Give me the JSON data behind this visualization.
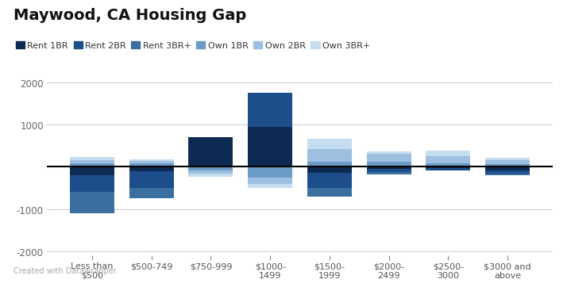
{
  "title": "Maywood, CA Housing Gap",
  "categories": [
    "Less than\n$500",
    "$500-749",
    "$750-999",
    "$1000-\n1499",
    "$1500-\n1999",
    "$2000-\n2499",
    "$2500-\n3000",
    "$3000 and\nabove"
  ],
  "series": {
    "Rent 1BR": [
      -200,
      -100,
      700,
      950,
      -150,
      -50,
      -30,
      -80
    ],
    "Rent 2BR": [
      -400,
      -400,
      0,
      800,
      -350,
      -80,
      -50,
      -80
    ],
    "Rent 3BR+": [
      -500,
      -250,
      0,
      0,
      -200,
      -50,
      0,
      -30
    ],
    "Own 1BR": [
      80,
      80,
      -80,
      -250,
      120,
      120,
      80,
      60
    ],
    "Own 2BR": [
      80,
      60,
      -80,
      -150,
      300,
      180,
      180,
      100
    ],
    "Own 3BR+": [
      70,
      40,
      -70,
      -100,
      250,
      60,
      130,
      60
    ]
  },
  "colors": {
    "Rent 1BR": "#0d2b52",
    "Rent 2BR": "#1e4d8c",
    "Rent 3BR+": "#3b6fa0",
    "Own 1BR": "#6b9bc7",
    "Own 2BR": "#9dbfe0",
    "Own 3BR+": "#c5ddf0"
  },
  "ylim": [
    -2100,
    2300
  ],
  "yticks": [
    -2000,
    -1000,
    0,
    1000,
    2000
  ],
  "background_color": "#ffffff",
  "zero_line_color": "#000000",
  "grid_color": "#d0d0d0",
  "footer": "Created with Datawrapper"
}
